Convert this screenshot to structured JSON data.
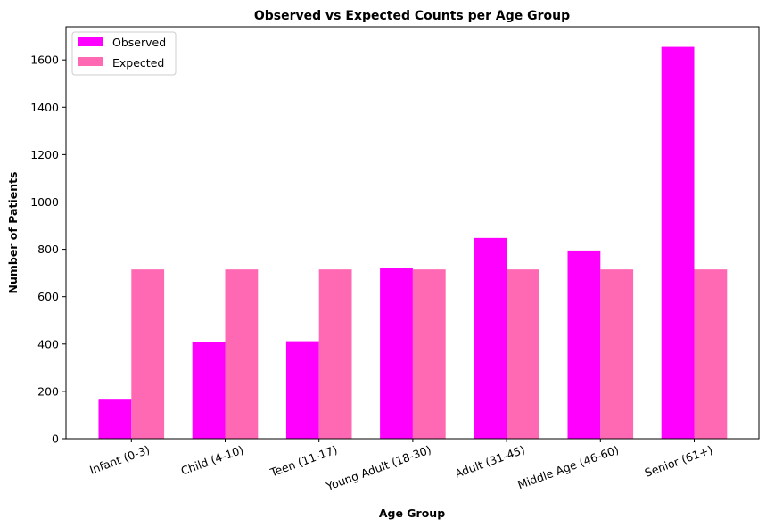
{
  "chart_data": {
    "type": "bar",
    "title": "Observed vs Expected Counts per Age Group",
    "xlabel": "Age Group",
    "ylabel": "Number of Patients",
    "categories": [
      "Infant (0-3)",
      "Child (4-10)",
      "Teen (11-17)",
      "Young Adult (18-30)",
      "Adult (31-45)",
      "Middle Age (46-60)",
      "Senior (61+)"
    ],
    "series": [
      {
        "name": "Observed",
        "color": "#ff00ff",
        "values": [
          165,
          410,
          412,
          720,
          848,
          795,
          1655
        ]
      },
      {
        "name": "Expected",
        "color": "#ff69b4",
        "values": [
          715,
          715,
          715,
          715,
          715,
          715,
          715
        ]
      }
    ],
    "ylim": [
      0,
      1740
    ],
    "yticks": [
      0,
      200,
      400,
      600,
      800,
      1000,
      1200,
      1400,
      1600
    ],
    "grid": false,
    "legend_position": "top-left"
  }
}
